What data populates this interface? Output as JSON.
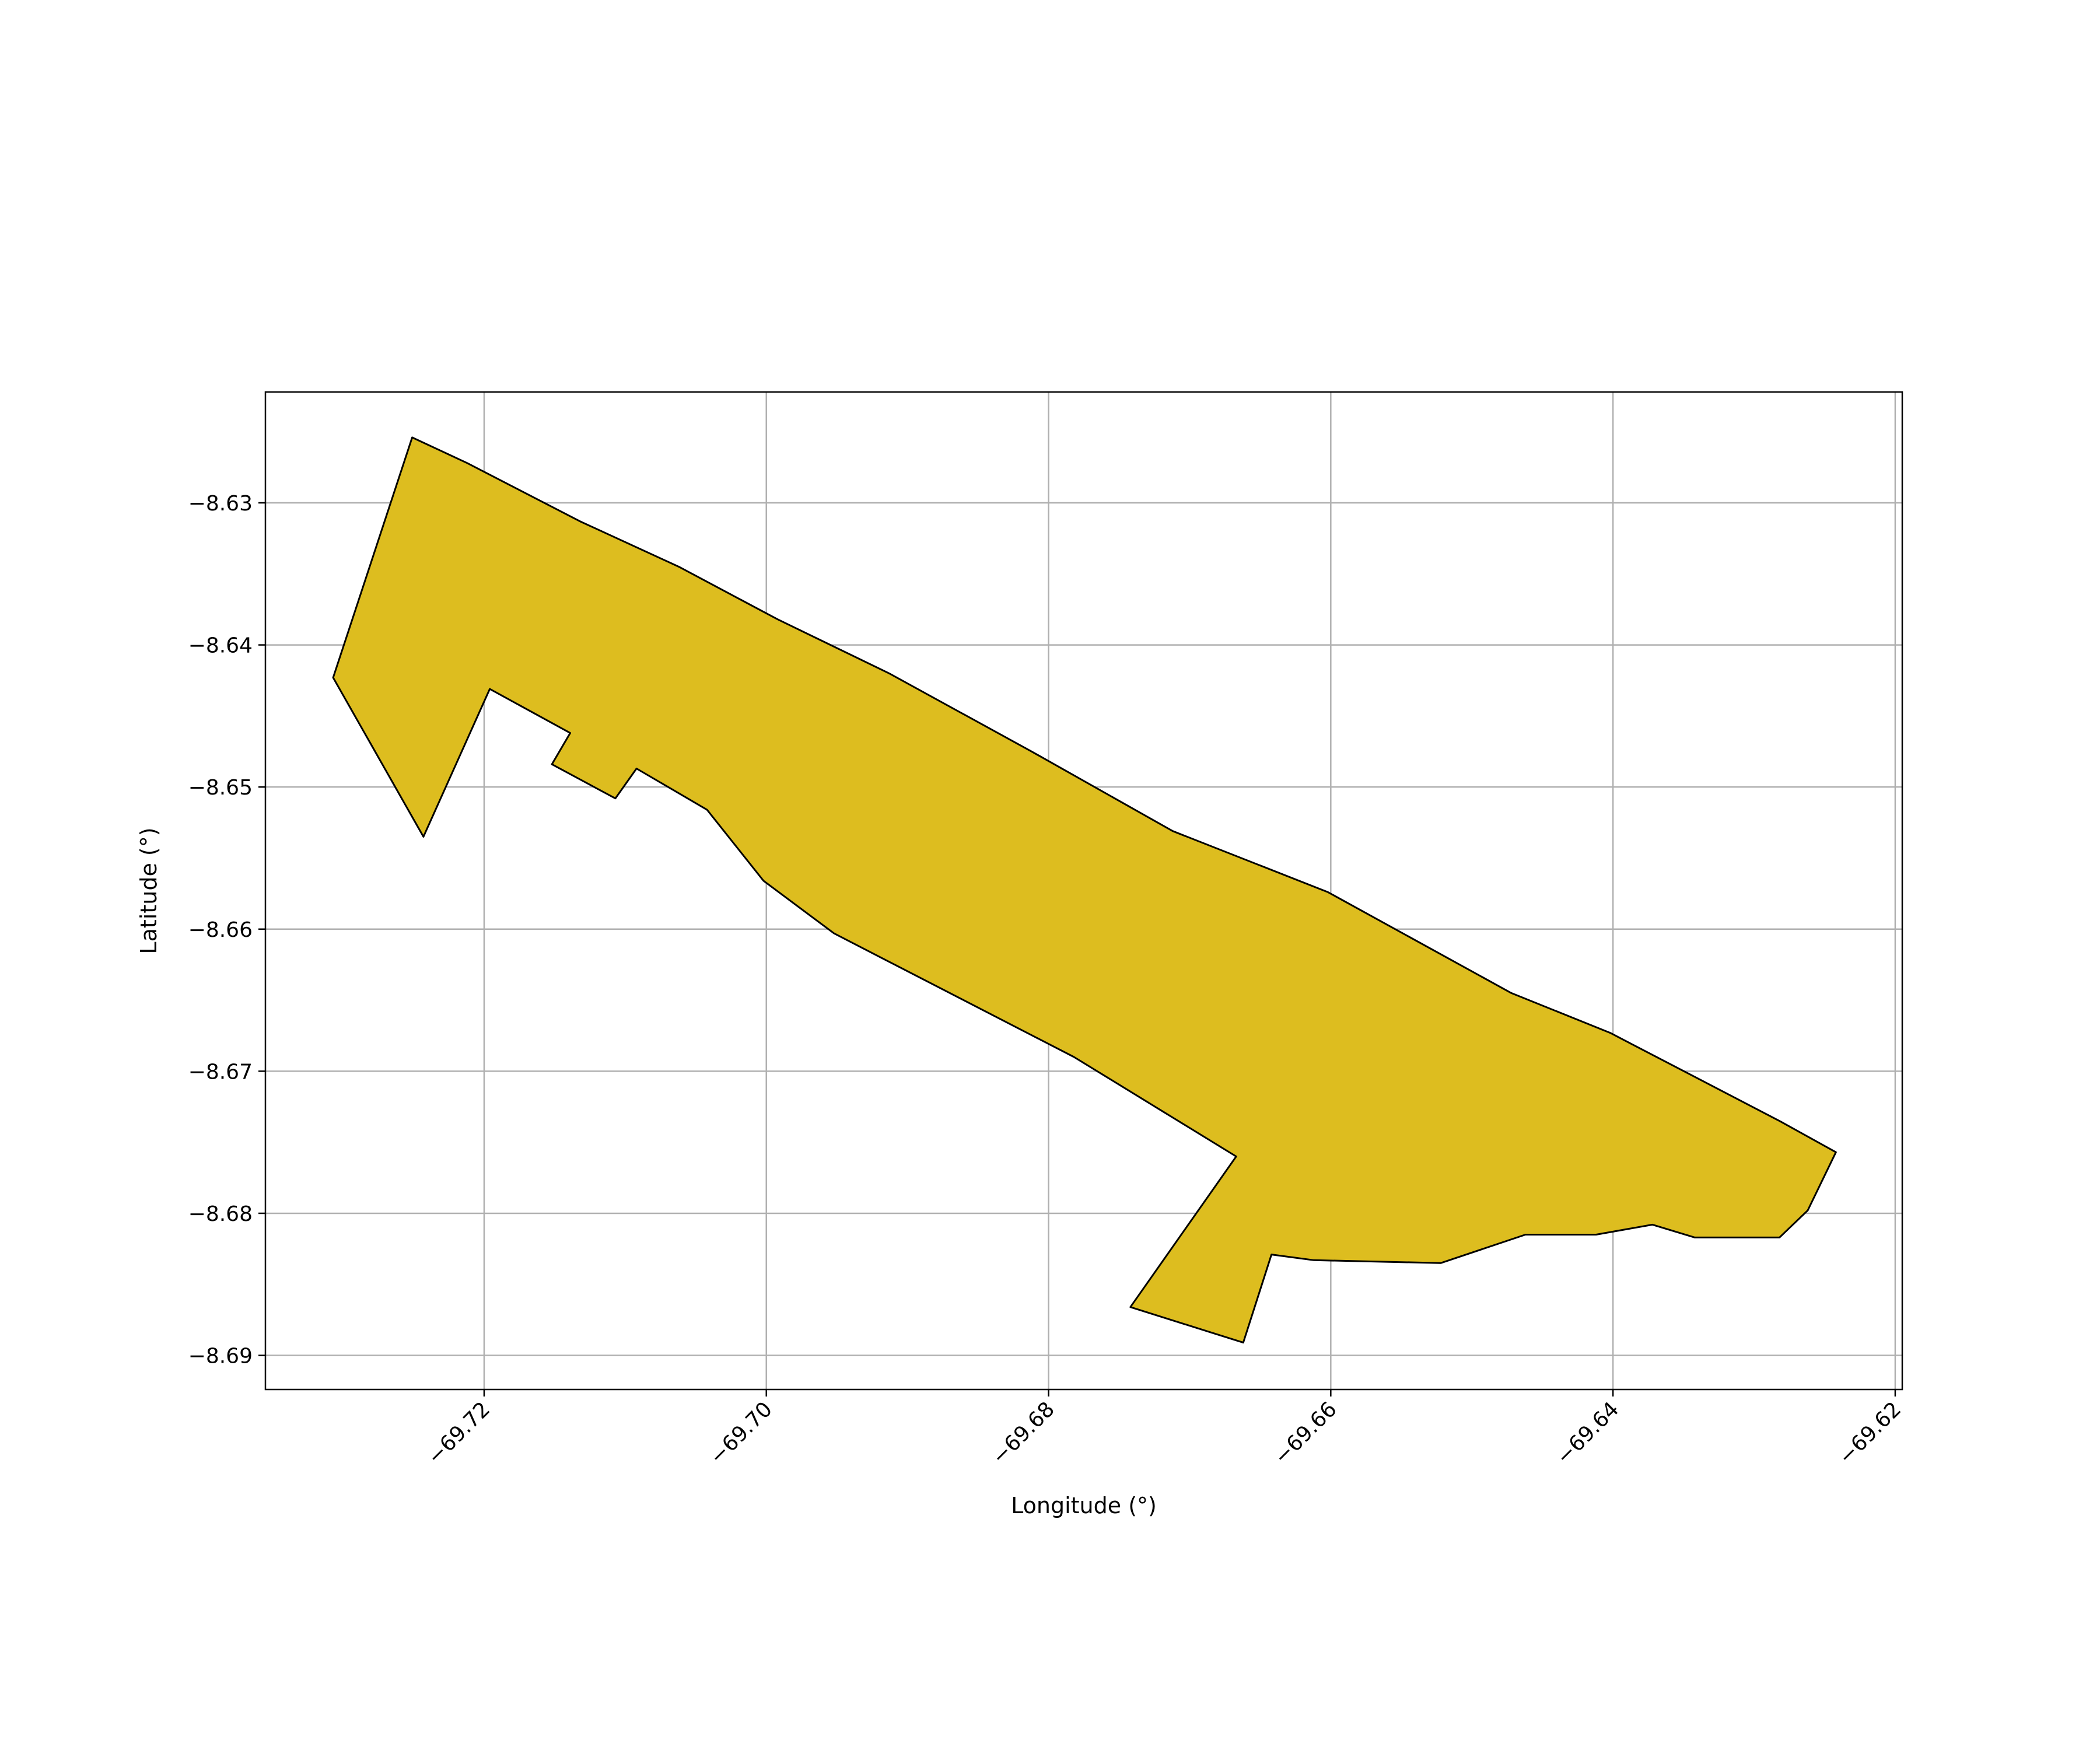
{
  "chart_data": {
    "type": "map-polygon",
    "title": "",
    "xlabel": "Longitude (°)",
    "ylabel": "Latitude (°)",
    "xlim": [
      -69.7355,
      -69.6195
    ],
    "ylim": [
      -8.6924,
      -8.6222
    ],
    "xticks": [
      -69.72,
      -69.7,
      -69.68,
      -69.66,
      -69.64,
      -69.62
    ],
    "xtick_labels": [
      "−69.72",
      "−69.70",
      "−69.68",
      "−69.66",
      "−69.64",
      "−69.62"
    ],
    "yticks": [
      -8.63,
      -8.64,
      -8.65,
      -8.66,
      -8.67,
      -8.68,
      -8.69
    ],
    "ytick_labels": [
      "−8.63",
      "−8.64",
      "−8.65",
      "−8.66",
      "−8.67",
      "−8.68",
      "−8.69"
    ],
    "grid": true,
    "fill_color": "#ddbd1f",
    "edge_color": "#000000",
    "grid_color": "#b0b0b0",
    "polygon": [
      [
        -69.7251,
        -8.6254
      ],
      [
        -69.7212,
        -8.6272
      ],
      [
        -69.7132,
        -8.6313
      ],
      [
        -69.7062,
        -8.6345
      ],
      [
        -69.6992,
        -8.6382
      ],
      [
        -69.6913,
        -8.642
      ],
      [
        -69.6812,
        -8.6475
      ],
      [
        -69.6712,
        -8.6531
      ],
      [
        -69.6602,
        -8.6574
      ],
      [
        -69.6472,
        -8.6645
      ],
      [
        -69.6402,
        -8.6673
      ],
      [
        -69.6282,
        -8.6735
      ],
      [
        -69.6242,
        -8.6757
      ],
      [
        -69.6262,
        -8.6798
      ],
      [
        -69.6282,
        -8.6817
      ],
      [
        -69.6342,
        -8.6817
      ],
      [
        -69.6372,
        -8.6808
      ],
      [
        -69.6412,
        -8.6815
      ],
      [
        -69.6462,
        -8.6815
      ],
      [
        -69.6522,
        -8.6835
      ],
      [
        -69.6612,
        -8.6833
      ],
      [
        -69.6642,
        -8.6829
      ],
      [
        -69.6662,
        -8.6891
      ],
      [
        -69.6742,
        -8.6866
      ],
      [
        -69.6667,
        -8.676
      ],
      [
        -69.6782,
        -8.669
      ],
      [
        -69.6952,
        -8.6603
      ],
      [
        -69.7002,
        -8.6566
      ],
      [
        -69.7042,
        -8.6516
      ],
      [
        -69.7092,
        -8.6487
      ],
      [
        -69.7107,
        -8.6508
      ],
      [
        -69.7152,
        -8.6484
      ],
      [
        -69.7139,
        -8.6462
      ],
      [
        -69.7196,
        -8.6431
      ],
      [
        -69.7243,
        -8.6535
      ],
      [
        -69.7307,
        -8.6423
      ]
    ]
  }
}
